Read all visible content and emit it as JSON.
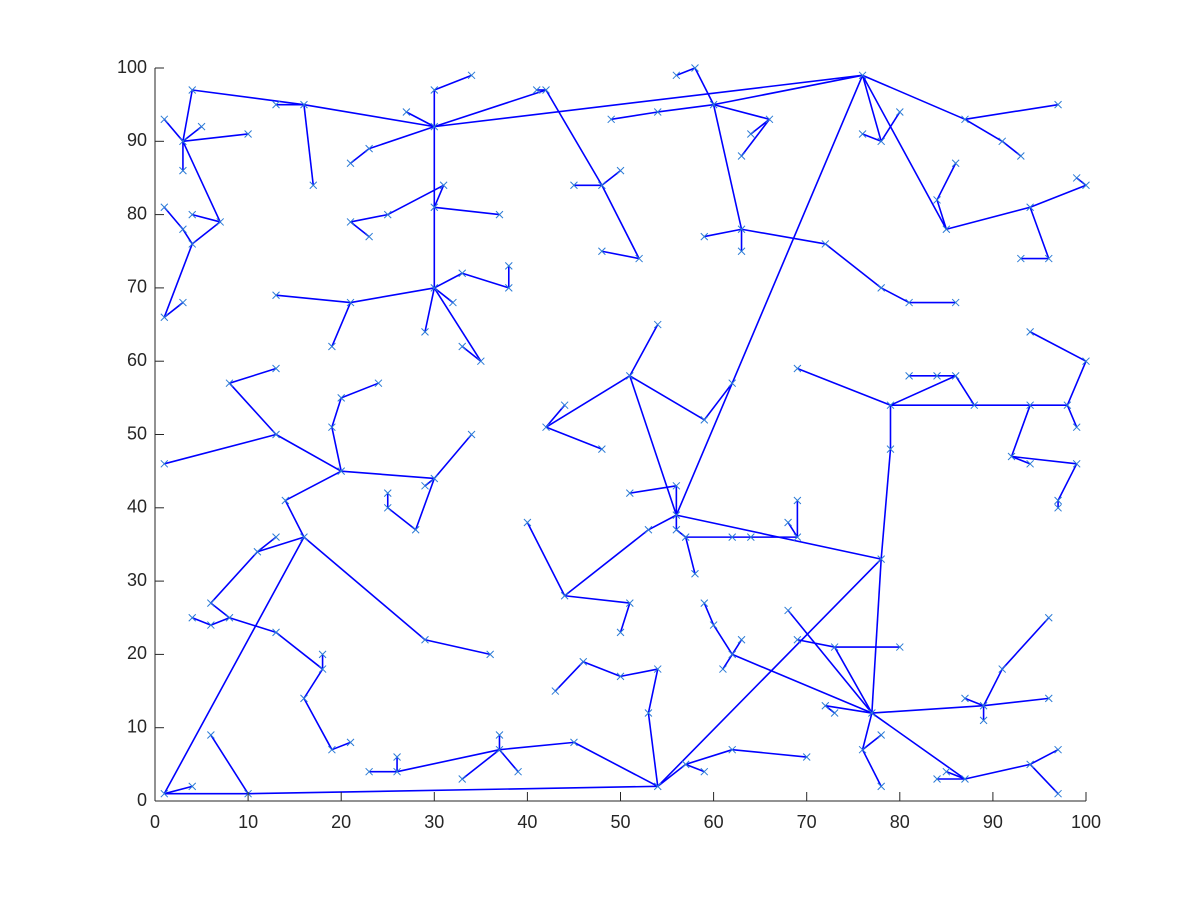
{
  "chart_data": {
    "type": "scatter",
    "x": [
      1,
      3,
      5,
      3,
      10,
      4,
      7,
      4,
      4,
      3,
      1,
      1,
      3,
      13,
      16,
      17,
      30,
      30,
      34,
      27,
      23,
      21,
      30,
      37,
      31,
      25,
      21,
      23,
      30,
      21,
      13,
      19,
      29,
      32,
      33,
      38,
      38,
      35,
      33,
      42,
      41,
      48,
      45,
      50,
      52,
      48,
      58,
      56,
      60,
      54,
      49,
      66,
      63,
      64,
      63,
      63,
      59,
      72,
      78,
      81,
      86,
      76,
      78,
      76,
      80,
      85,
      84,
      86,
      94,
      100,
      99,
      96,
      93,
      87,
      97,
      91,
      93,
      56,
      57,
      58,
      56,
      62,
      64,
      69,
      69,
      68,
      56,
      51,
      78,
      51,
      54,
      42,
      44,
      48,
      59,
      62,
      53,
      44,
      40,
      51,
      50,
      54,
      77,
      1,
      10,
      53,
      54,
      50,
      46,
      43,
      45,
      57,
      59,
      62,
      70,
      37,
      37,
      33,
      39,
      26,
      23,
      26,
      8,
      13,
      13,
      1,
      20,
      19,
      20,
      24,
      30,
      34,
      29,
      28,
      25,
      25,
      14,
      16,
      11,
      13,
      6,
      8,
      6,
      4,
      13,
      18,
      18,
      16,
      19,
      21,
      29,
      36,
      6,
      4,
      69,
      79,
      79,
      86,
      84,
      81,
      88,
      94,
      98,
      100,
      94,
      99,
      92,
      99,
      97,
      97,
      94,
      68,
      73,
      80,
      69,
      72,
      73,
      76,
      78,
      78,
      87,
      84,
      85,
      94,
      97,
      97,
      62,
      60,
      59,
      63,
      61,
      89,
      96,
      87,
      89,
      91,
      96
    ],
    "values": [
      93,
      90,
      92,
      86,
      91,
      97,
      79,
      80,
      76,
      78,
      81,
      66,
      68,
      95,
      95,
      84,
      92,
      97,
      99,
      94,
      89,
      87,
      81,
      80,
      84,
      80,
      79,
      77,
      70,
      68,
      69,
      62,
      64,
      68,
      72,
      70,
      73,
      60,
      62,
      97,
      97,
      84,
      84,
      86,
      74,
      75,
      100,
      99,
      95,
      94,
      93,
      93,
      88,
      91,
      78,
      75,
      77,
      76,
      70,
      68,
      68,
      99,
      90,
      91,
      94,
      78,
      82,
      87,
      81,
      84,
      85,
      74,
      74,
      93,
      95,
      90,
      88,
      39,
      36,
      31,
      37,
      36,
      36,
      36,
      41,
      38,
      43,
      42,
      33,
      58,
      65,
      51,
      54,
      48,
      52,
      57,
      37,
      28,
      38,
      27,
      23,
      2,
      12,
      1,
      1,
      12,
      18,
      17,
      19,
      15,
      8,
      5,
      4,
      7,
      6,
      7,
      9,
      3,
      4,
      4,
      4,
      6,
      57,
      59,
      50,
      46,
      45,
      51,
      55,
      57,
      44,
      50,
      43,
      37,
      40,
      42,
      41,
      36,
      34,
      36,
      27,
      25,
      24,
      25,
      23,
      18,
      20,
      14,
      7,
      8,
      22,
      20,
      9,
      2,
      59,
      54,
      48,
      58,
      58,
      58,
      54,
      54,
      54,
      60,
      64,
      51,
      47,
      46,
      41,
      40,
      46,
      26,
      21,
      21,
      22,
      13,
      12,
      7,
      2,
      9,
      3,
      3,
      4,
      5,
      7,
      1,
      20,
      24,
      27,
      22,
      18,
      13,
      14,
      14,
      11,
      18,
      25
    ],
    "edges": [
      [
        0,
        1
      ],
      [
        1,
        2
      ],
      [
        1,
        3
      ],
      [
        1,
        4
      ],
      [
        1,
        5
      ],
      [
        1,
        6
      ],
      [
        6,
        7
      ],
      [
        6,
        8
      ],
      [
        8,
        9
      ],
      [
        9,
        10
      ],
      [
        8,
        11
      ],
      [
        11,
        12
      ],
      [
        5,
        14
      ],
      [
        13,
        14
      ],
      [
        14,
        15
      ],
      [
        14,
        16
      ],
      [
        16,
        17
      ],
      [
        17,
        18
      ],
      [
        16,
        19
      ],
      [
        16,
        20
      ],
      [
        20,
        21
      ],
      [
        16,
        22
      ],
      [
        22,
        23
      ],
      [
        22,
        24
      ],
      [
        24,
        25
      ],
      [
        25,
        26
      ],
      [
        26,
        27
      ],
      [
        22,
        28
      ],
      [
        28,
        29
      ],
      [
        29,
        30
      ],
      [
        29,
        31
      ],
      [
        28,
        32
      ],
      [
        28,
        33
      ],
      [
        28,
        34
      ],
      [
        34,
        35
      ],
      [
        35,
        36
      ],
      [
        28,
        37
      ],
      [
        37,
        38
      ],
      [
        16,
        39
      ],
      [
        39,
        40
      ],
      [
        39,
        41
      ],
      [
        41,
        42
      ],
      [
        41,
        43
      ],
      [
        41,
        44
      ],
      [
        44,
        45
      ],
      [
        16,
        61
      ],
      [
        46,
        47
      ],
      [
        46,
        48
      ],
      [
        49,
        50
      ],
      [
        48,
        49
      ],
      [
        48,
        61
      ],
      [
        48,
        51
      ],
      [
        51,
        52
      ],
      [
        51,
        53
      ],
      [
        48,
        54
      ],
      [
        54,
        55
      ],
      [
        54,
        56
      ],
      [
        54,
        57
      ],
      [
        57,
        58
      ],
      [
        58,
        59
      ],
      [
        59,
        60
      ],
      [
        61,
        62
      ],
      [
        62,
        63
      ],
      [
        62,
        64
      ],
      [
        61,
        65
      ],
      [
        65,
        66
      ],
      [
        66,
        67
      ],
      [
        65,
        68
      ],
      [
        68,
        69
      ],
      [
        69,
        70
      ],
      [
        68,
        71
      ],
      [
        71,
        72
      ],
      [
        61,
        73
      ],
      [
        73,
        74
      ],
      [
        73,
        75
      ],
      [
        75,
        76
      ],
      [
        61,
        77
      ],
      [
        77,
        80
      ],
      [
        80,
        78
      ],
      [
        78,
        79
      ],
      [
        78,
        81
      ],
      [
        81,
        82
      ],
      [
        82,
        83
      ],
      [
        83,
        84
      ],
      [
        83,
        85
      ],
      [
        77,
        86
      ],
      [
        86,
        87
      ],
      [
        77,
        89
      ],
      [
        89,
        90
      ],
      [
        89,
        91
      ],
      [
        91,
        92
      ],
      [
        91,
        93
      ],
      [
        89,
        94
      ],
      [
        94,
        95
      ],
      [
        77,
        96
      ],
      [
        96,
        97
      ],
      [
        97,
        98
      ],
      [
        97,
        99
      ],
      [
        99,
        100
      ],
      [
        77,
        88
      ],
      [
        88,
        101
      ],
      [
        88,
        102
      ],
      [
        101,
        104
      ],
      [
        104,
        103
      ],
      [
        101,
        105
      ],
      [
        105,
        106
      ],
      [
        106,
        107
      ],
      [
        107,
        108
      ],
      [
        108,
        109
      ],
      [
        101,
        110
      ],
      [
        101,
        111
      ],
      [
        111,
        112
      ],
      [
        111,
        113
      ],
      [
        113,
        114
      ],
      [
        110,
        115
      ],
      [
        115,
        116
      ],
      [
        115,
        117
      ],
      [
        115,
        118
      ],
      [
        115,
        119
      ],
      [
        119,
        120
      ],
      [
        119,
        121
      ],
      [
        122,
        123
      ],
      [
        122,
        124
      ],
      [
        124,
        125
      ],
      [
        124,
        126
      ],
      [
        126,
        127
      ],
      [
        127,
        128
      ],
      [
        128,
        129
      ],
      [
        126,
        130
      ],
      [
        130,
        131
      ],
      [
        130,
        132
      ],
      [
        130,
        133
      ],
      [
        133,
        134
      ],
      [
        134,
        135
      ],
      [
        126,
        136
      ],
      [
        136,
        137
      ],
      [
        137,
        103
      ],
      [
        137,
        138
      ],
      [
        138,
        139
      ],
      [
        138,
        140
      ],
      [
        140,
        141
      ],
      [
        141,
        142
      ],
      [
        142,
        143
      ],
      [
        141,
        144
      ],
      [
        144,
        145
      ],
      [
        145,
        146
      ],
      [
        145,
        147
      ],
      [
        147,
        148
      ],
      [
        148,
        149
      ],
      [
        137,
        150
      ],
      [
        150,
        151
      ],
      [
        152,
        104
      ],
      [
        103,
        153
      ],
      [
        154,
        155
      ],
      [
        155,
        156
      ],
      [
        156,
        88
      ],
      [
        155,
        157
      ],
      [
        157,
        158
      ],
      [
        158,
        159
      ],
      [
        157,
        160
      ],
      [
        155,
        161
      ],
      [
        161,
        162
      ],
      [
        162,
        163
      ],
      [
        163,
        164
      ],
      [
        162,
        165
      ],
      [
        161,
        166
      ],
      [
        166,
        167
      ],
      [
        167,
        168
      ],
      [
        168,
        169
      ],
      [
        166,
        170
      ],
      [
        102,
        171
      ],
      [
        102,
        172
      ],
      [
        172,
        173
      ],
      [
        174,
        172
      ],
      [
        102,
        175
      ],
      [
        175,
        176
      ],
      [
        102,
        177
      ],
      [
        177,
        178
      ],
      [
        177,
        179
      ],
      [
        102,
        180
      ],
      [
        180,
        181
      ],
      [
        180,
        182
      ],
      [
        180,
        183
      ],
      [
        183,
        184
      ],
      [
        183,
        185
      ],
      [
        102,
        186
      ],
      [
        186,
        187
      ],
      [
        187,
        188
      ],
      [
        186,
        189
      ],
      [
        186,
        190
      ],
      [
        102,
        191
      ],
      [
        191,
        192
      ],
      [
        191,
        193
      ],
      [
        191,
        194
      ],
      [
        191,
        195
      ],
      [
        195,
        196
      ]
    ],
    "line_color": "#0000ff",
    "marker_color": "#2b7bd6",
    "xlim": [
      0,
      100
    ],
    "ylim": [
      0,
      100
    ],
    "xticks": [
      0,
      10,
      20,
      30,
      40,
      50,
      60,
      70,
      80,
      90,
      100
    ],
    "yticks": [
      0,
      10,
      20,
      30,
      40,
      50,
      60,
      70,
      80,
      90,
      100
    ]
  }
}
